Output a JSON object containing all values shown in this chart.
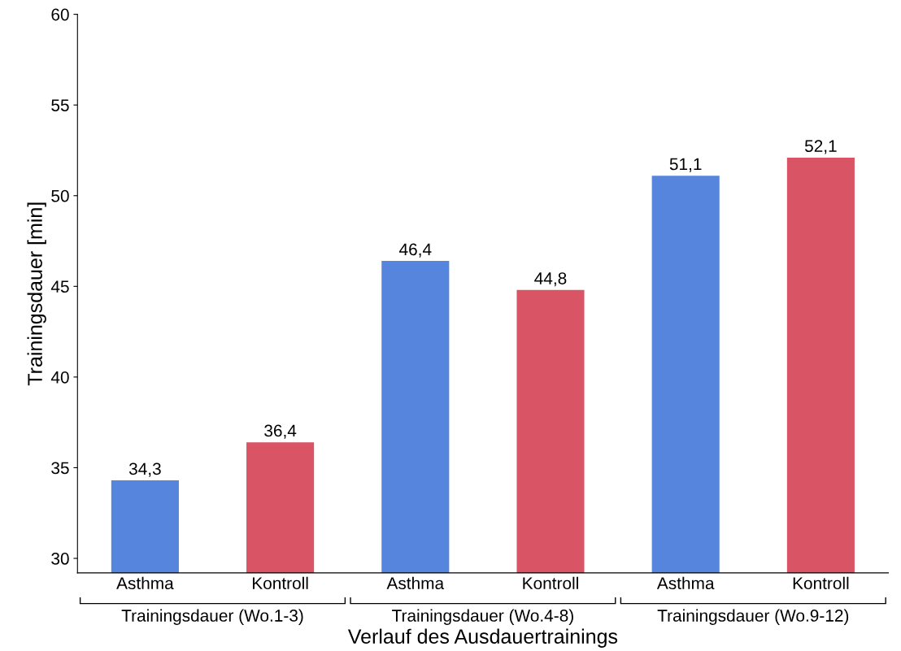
{
  "chart_data": {
    "type": "bar",
    "categories": [
      "Asthma",
      "Kontroll",
      "Asthma",
      "Kontroll",
      "Asthma",
      "Kontroll"
    ],
    "values": [
      34.3,
      36.4,
      46.4,
      44.8,
      51.1,
      52.1
    ],
    "value_labels": [
      "34,3",
      "36,4",
      "46,4",
      "44,8",
      "51,1",
      "52,1"
    ],
    "colors": [
      "#5585dd",
      "#d95566",
      "#5585dd",
      "#d95566",
      "#5585dd",
      "#d95566"
    ],
    "ylabel": "Trainingsdauer [min]",
    "xlabel": "Verlauf des Ausdauertrainings",
    "annotations": [
      "Trainingsdauer (Wo.1-3)",
      "Trainingsdauer (Wo.4-8)",
      "Trainingsdauer (Wo.9-12)"
    ],
    "ylim": [
      29.2,
      60
    ],
    "yticks": [
      30,
      35,
      40,
      45,
      50,
      55,
      60
    ],
    "grid": false,
    "legend": false
  }
}
